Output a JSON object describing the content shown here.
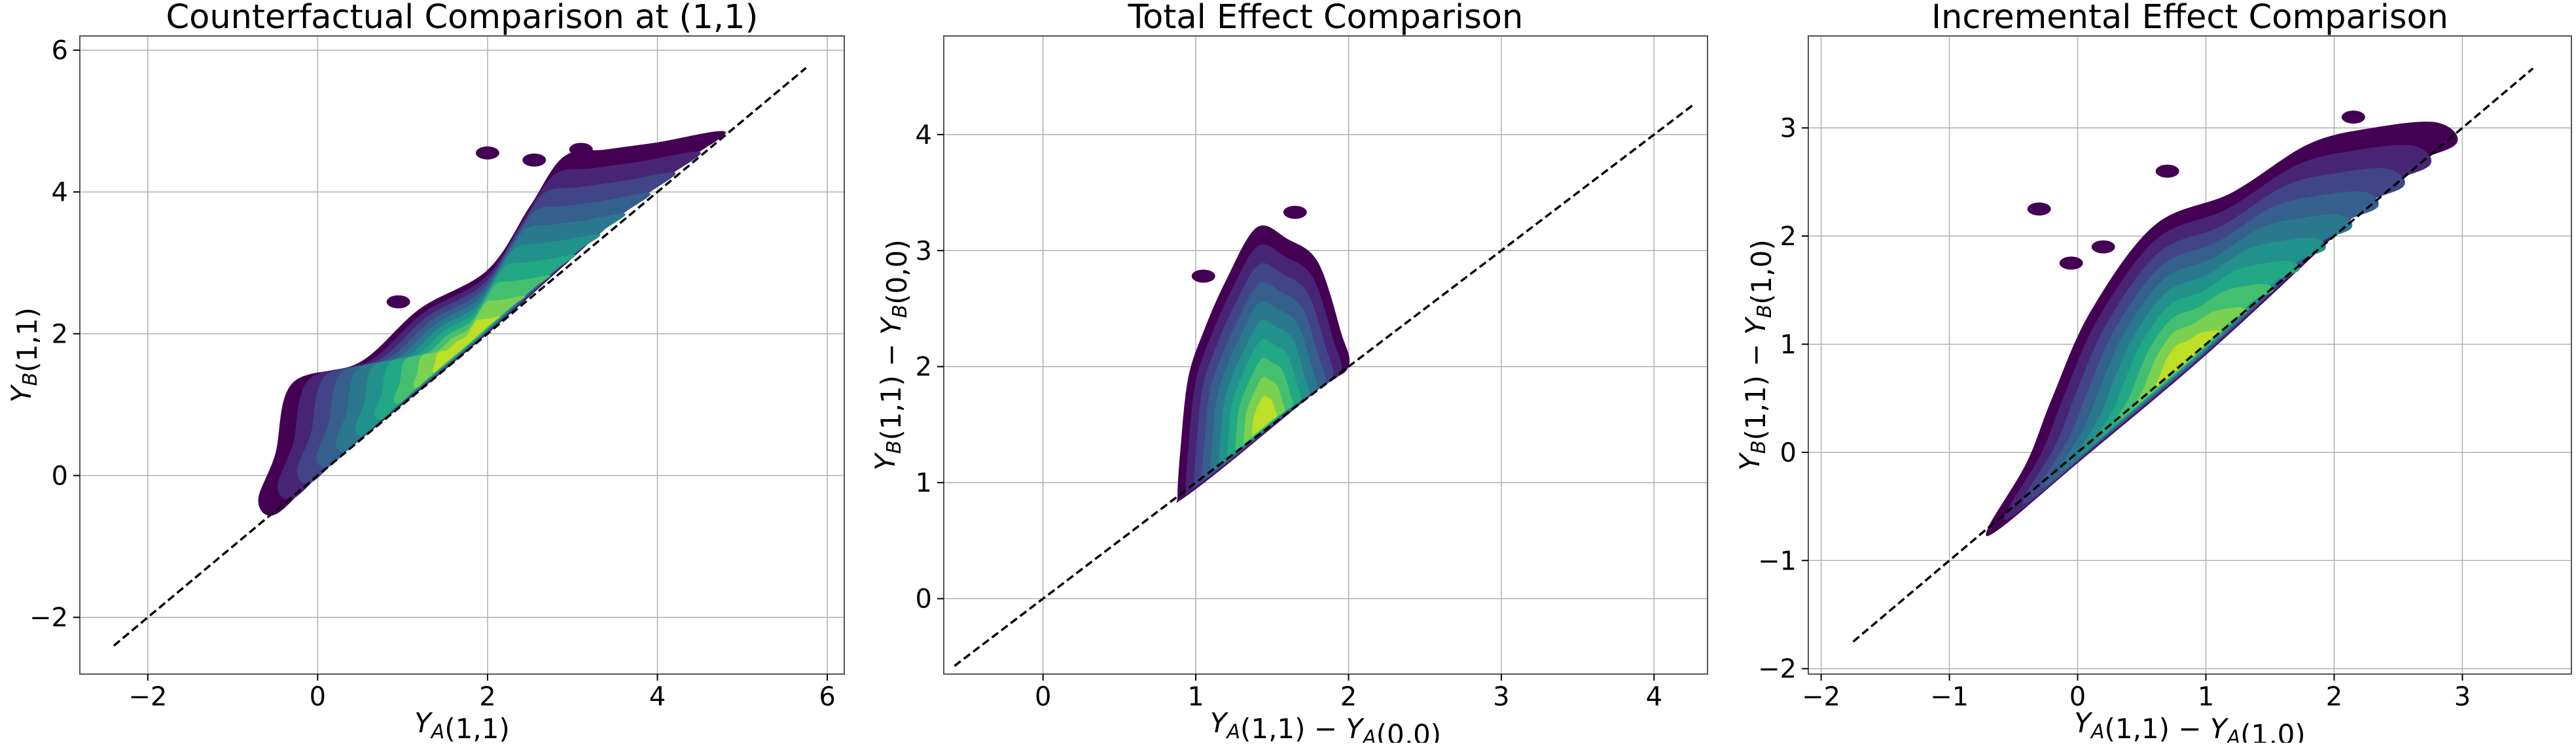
{
  "colors": {
    "background": "#ffffff",
    "grid": "#b0b0b0",
    "axes": "#000000",
    "identity_line": "#000000",
    "density_levels": [
      "#440154",
      "#482475",
      "#414487",
      "#355f8d",
      "#2a788e",
      "#21918c",
      "#22a884",
      "#44bf70",
      "#7ad151",
      "#bddf26"
    ]
  },
  "chart_data": [
    {
      "type": "density-contour",
      "title": "Counterfactual Comparison at (1,1)",
      "xlabel": "Y_A(1,1)",
      "ylabel": "Y_B(1,1)",
      "xlim": [
        -2.8,
        6.2
      ],
      "ylim": [
        -2.8,
        6.2
      ],
      "xticks": [
        -2,
        0,
        2,
        4,
        6
      ],
      "yticks": [
        -2,
        0,
        2,
        4,
        6
      ],
      "xtick_labels": [
        "−2",
        "0",
        "2",
        "4",
        "6"
      ],
      "ytick_labels": [
        "−2",
        "0",
        "2",
        "4",
        "6"
      ],
      "grid": true,
      "identity_line": {
        "from": -2.4,
        "to": 5.75,
        "style": "dashed"
      },
      "density_center": [
        1.7,
        1.8
      ],
      "support": [
        [
          -0.7,
          -0.35
        ],
        [
          -0.5,
          0.3
        ],
        [
          -0.3,
          1.3
        ],
        [
          0.5,
          1.6
        ],
        [
          1.2,
          2.35
        ],
        [
          2.0,
          2.9
        ],
        [
          2.5,
          3.8
        ],
        [
          2.9,
          4.5
        ],
        [
          3.4,
          4.6
        ],
        [
          4.0,
          4.7
        ],
        [
          4.8,
          4.85
        ],
        [
          4.3,
          4.4
        ],
        [
          3.5,
          3.6
        ],
        [
          2.0,
          2.0
        ],
        [
          0.8,
          0.8
        ],
        [
          0.0,
          0.0
        ],
        [
          -0.5,
          -0.55
        ]
      ],
      "islands": [
        [
          2.0,
          4.55
        ],
        [
          2.55,
          4.45
        ],
        [
          3.1,
          4.6
        ],
        [
          0.95,
          2.45
        ]
      ]
    },
    {
      "type": "density-contour",
      "title": "Total Effect Comparison",
      "xlabel": "Y_A(1,1) − Y_A(0,0)",
      "ylabel": "Y_B(1,1) − Y_B(0,0)",
      "xlim": [
        -0.65,
        4.35
      ],
      "ylim": [
        -0.65,
        4.85
      ],
      "xticks": [
        0,
        1,
        2,
        3,
        4
      ],
      "yticks": [
        0,
        1,
        2,
        3,
        4
      ],
      "xtick_labels": [
        "0",
        "1",
        "2",
        "3",
        "4"
      ],
      "ytick_labels": [
        "0",
        "1",
        "2",
        "3",
        "4"
      ],
      "grid": true,
      "identity_line": {
        "from": -0.58,
        "to": 4.25,
        "style": "dashed"
      },
      "density_center": [
        1.45,
        1.5
      ],
      "support": [
        [
          0.88,
          0.88
        ],
        [
          0.9,
          1.3
        ],
        [
          0.95,
          1.9
        ],
        [
          1.05,
          2.3
        ],
        [
          1.2,
          2.75
        ],
        [
          1.4,
          3.2
        ],
        [
          1.6,
          3.1
        ],
        [
          1.8,
          2.9
        ],
        [
          1.95,
          2.3
        ],
        [
          2.0,
          2.0
        ],
        [
          1.8,
          1.8
        ],
        [
          1.2,
          1.15
        ],
        [
          0.9,
          0.85
        ]
      ],
      "islands": [
        [
          1.05,
          2.78
        ],
        [
          1.65,
          3.33
        ]
      ]
    },
    {
      "type": "density-contour",
      "title": "Incremental Effect Comparison",
      "xlabel": "Y_A(1,1) − Y_A(1,0)",
      "ylabel": "Y_B(1,1) − Y_B(1,0)",
      "xlim": [
        -2.1,
        3.85
      ],
      "ylim": [
        -2.05,
        3.85
      ],
      "xticks": [
        -2,
        -1,
        0,
        1,
        2,
        3
      ],
      "yticks": [
        -2,
        -1,
        0,
        1,
        2,
        3
      ],
      "xtick_labels": [
        "−2",
        "−1",
        "0",
        "1",
        "2",
        "3"
      ],
      "ytick_labels": [
        "−2",
        "−1",
        "0",
        "1",
        "2",
        "3"
      ],
      "grid": true,
      "identity_line": {
        "from": -1.75,
        "to": 3.55,
        "style": "dashed"
      },
      "density_center": [
        0.8,
        0.8
      ],
      "support": [
        [
          -0.7,
          -0.7
        ],
        [
          -0.4,
          -0.1
        ],
        [
          -0.2,
          0.5
        ],
        [
          0.1,
          1.3
        ],
        [
          0.6,
          2.1
        ],
        [
          1.2,
          2.4
        ],
        [
          1.8,
          2.85
        ],
        [
          2.3,
          3.0
        ],
        [
          2.8,
          3.05
        ],
        [
          2.95,
          2.85
        ],
        [
          2.5,
          2.6
        ],
        [
          2.0,
          2.0
        ],
        [
          1.0,
          0.9
        ],
        [
          0.0,
          -0.1
        ],
        [
          -0.6,
          -0.7
        ]
      ],
      "islands": [
        [
          -0.3,
          2.25
        ],
        [
          -0.05,
          1.75
        ],
        [
          0.2,
          1.9
        ],
        [
          0.7,
          2.6
        ],
        [
          2.15,
          3.1
        ]
      ]
    }
  ]
}
